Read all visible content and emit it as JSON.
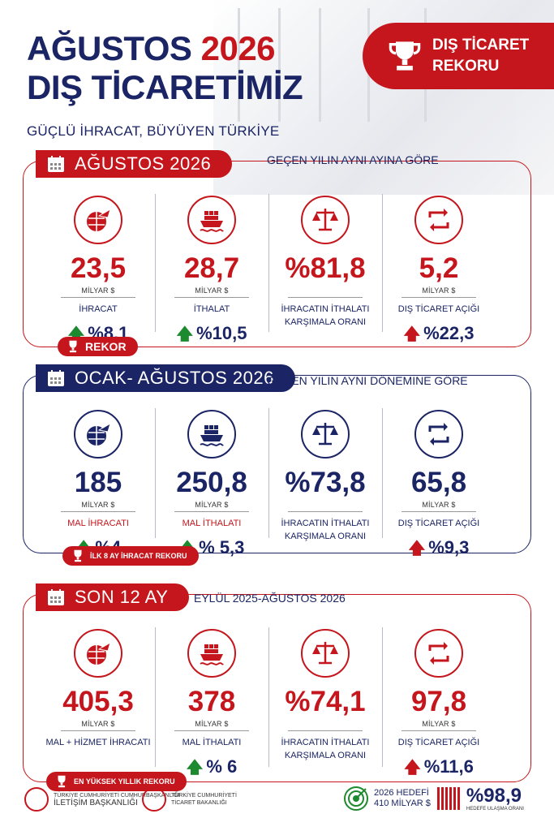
{
  "header": {
    "title_line1_a": "AĞUSTOS",
    "title_line1_b": "2026",
    "title_line2": "DIŞ TİCARETİMİZ",
    "subtitle": "GÜÇLÜ İHRACAT, BÜYÜYEN TÜRKİYE",
    "ribbon_line1": "DIŞ TİCARET",
    "ribbon_line2": "REKORU"
  },
  "sections": [
    {
      "head": "AĞUSTOS 2026",
      "note": "GEÇEN YILIN AYNI AYINA GÖRE",
      "badge": "REKOR",
      "items": [
        {
          "value": "23,5",
          "unit": "MİLYAR $",
          "label": "İHRACAT",
          "label2": "",
          "change": "%8,1",
          "dir": "up-green",
          "icon": "globe-plane-icon"
        },
        {
          "value": "28,7",
          "unit": "MİLYAR $",
          "label": "İTHALAT",
          "label2": "",
          "change": "%10,5",
          "dir": "up-green",
          "icon": "ship-icon"
        },
        {
          "value": "%81,8",
          "unit": "",
          "label": "İHRACATIN İTHALATI",
          "label2": "KARŞIMALA ORANI",
          "change": "",
          "dir": "",
          "icon": "scale-icon"
        },
        {
          "value": "5,2",
          "unit": "MİLYAR $",
          "label": "DIŞ TİCARET AÇIĞI",
          "label2": "",
          "change": "%22,3",
          "dir": "up-red",
          "icon": "exchange-icon"
        }
      ]
    },
    {
      "head": "OCAK- AĞUSTOS 2026",
      "note": "GEÇEN YILIN AYNI DÖNEMİNE GÖRE",
      "badge": "İLK 8 AY İHRACAT REKORU",
      "items": [
        {
          "value": "185",
          "unit": "MİLYAR $",
          "label": "MAL İHRACATI",
          "label2": "",
          "change": "%4",
          "dir": "up-green",
          "icon": "globe-plane-icon"
        },
        {
          "value": "250,8",
          "unit": "MİLYAR $",
          "label": "MAL İTHALATI",
          "label2": "",
          "change": "% 5,3",
          "dir": "up-green",
          "icon": "ship-icon"
        },
        {
          "value": "%73,8",
          "unit": "",
          "label": "İHRACATIN İTHALATI",
          "label2": "KARŞIMALA ORANI",
          "change": "",
          "dir": "",
          "icon": "scale-icon"
        },
        {
          "value": "65,8",
          "unit": "MİLYAR $",
          "label": "DIŞ TİCARET AÇIĞI",
          "label2": "",
          "change": "%9,3",
          "dir": "up-red",
          "icon": "exchange-icon"
        }
      ]
    },
    {
      "head": "SON 12 AY",
      "note": "EYLÜL 2025-AĞUSTOS 2026",
      "badge": "EN YÜKSEK YILLIK REKORU",
      "items": [
        {
          "value": "405,3",
          "unit": "MİLYAR $",
          "label": "MAL + HİZMET İHRACATI",
          "label2": "",
          "change": "",
          "dir": "",
          "icon": "globe-plane-icon"
        },
        {
          "value": "378",
          "unit": "MİLYAR $",
          "label": "MAL İTHALATI",
          "label2": "",
          "change": "% 6",
          "dir": "up-green",
          "icon": "ship-icon"
        },
        {
          "value": "%74,1",
          "unit": "",
          "label": "İHRACATIN İTHALATI",
          "label2": "KARŞIMALA ORANI",
          "change": "",
          "dir": "",
          "icon": "scale-icon"
        },
        {
          "value": "97,8",
          "unit": "MİLYAR $",
          "label": "DIŞ TİCARET AÇIĞI",
          "label2": "",
          "change": "%11,6",
          "dir": "up-red",
          "icon": "exchange-icon"
        }
      ]
    }
  ],
  "footer": {
    "logo1_line1": "TÜRKİYE CUMHURİYETİ CUMHURBAŞKANLIĞI",
    "logo1_line2": "İLETİŞİM BAŞKANLIĞI",
    "logo2_line1": "TÜRKİYE CUMHURİYETİ",
    "logo2_line2": "TİCARET BAKANLIĞI",
    "target_line1": "2026 HEDEFİ",
    "target_line2": "410 MİLYAR $",
    "target_pct": "%98,9",
    "target_caption": "HEDEFE ULAŞMA ORANI"
  },
  "colors": {
    "red": "#c4161c",
    "navy": "#1b2565",
    "green": "#1e8a2f"
  }
}
